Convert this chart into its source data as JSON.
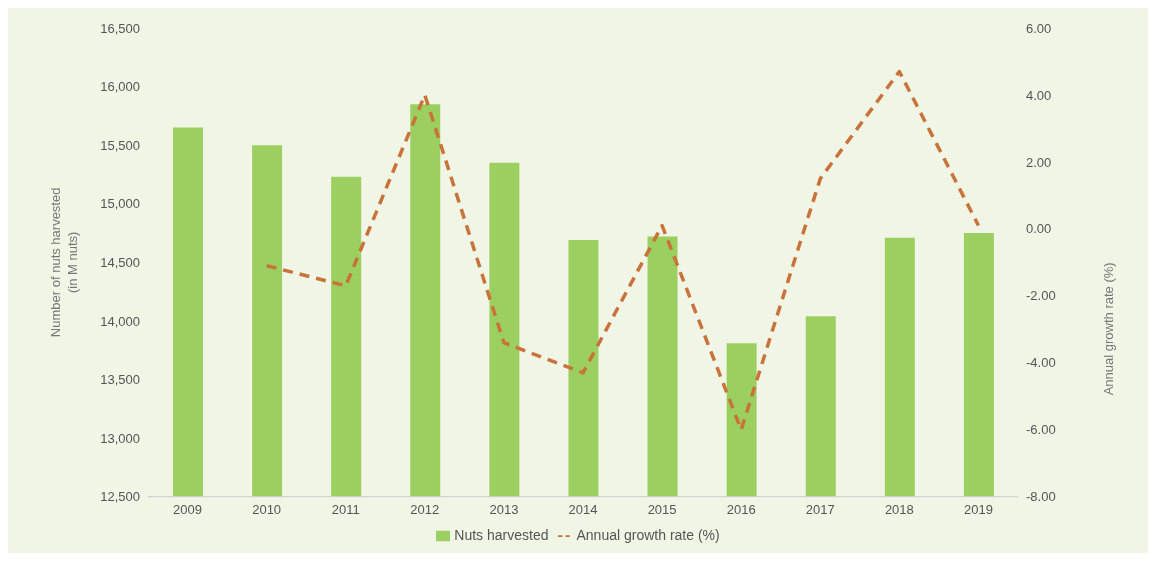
{
  "chart_data": {
    "type": "bar",
    "categories": [
      "2009",
      "2010",
      "2011",
      "2012",
      "2013",
      "2014",
      "2015",
      "2016",
      "2017",
      "2018",
      "2019"
    ],
    "series": [
      {
        "name": "Nuts harvested",
        "color": "#9bd060",
        "values": [
          15650,
          15500,
          15230,
          15850,
          15350,
          14690,
          14720,
          13810,
          14040,
          14710,
          14750
        ]
      },
      {
        "name": "Annual growth rate (%)",
        "type": "line",
        "axis": "y2",
        "color": "#c8733a",
        "line_style": "dashed",
        "values": [
          null,
          -1.1,
          -1.7,
          4.0,
          -3.4,
          -4.3,
          0.1,
          -6.0,
          1.5,
          4.7,
          0.1
        ]
      }
    ],
    "ylabel": "Number of nuts harvested\n(in M nuts)",
    "y2label": "Annual growth rate (%)",
    "ylim": [
      12500,
      16500
    ],
    "yticks": [
      {
        "value": 12500,
        "label": "12,500"
      },
      {
        "value": 13000,
        "label": "13,000"
      },
      {
        "value": 13500,
        "label": "13,500"
      },
      {
        "value": 14000,
        "label": "14,000"
      },
      {
        "value": 14500,
        "label": "14,500"
      },
      {
        "value": 15000,
        "label": "15,000"
      },
      {
        "value": 15500,
        "label": "15,500"
      },
      {
        "value": 16000,
        "label": "16,000"
      },
      {
        "value": 16500,
        "label": "16,500"
      }
    ],
    "y2lim": [
      -8,
      6
    ],
    "y2ticks": [
      {
        "value": -8,
        "label": "-8.00"
      },
      {
        "value": -6,
        "label": "-6.00"
      },
      {
        "value": -4,
        "label": "-4.00"
      },
      {
        "value": -2,
        "label": "-2.00"
      },
      {
        "value": 0,
        "label": "0.00"
      },
      {
        "value": 2,
        "label": "2.00"
      },
      {
        "value": 4,
        "label": "4.00"
      },
      {
        "value": 6,
        "label": "6.00"
      }
    ],
    "grid": false,
    "legend": "bottom",
    "marker": "none"
  }
}
